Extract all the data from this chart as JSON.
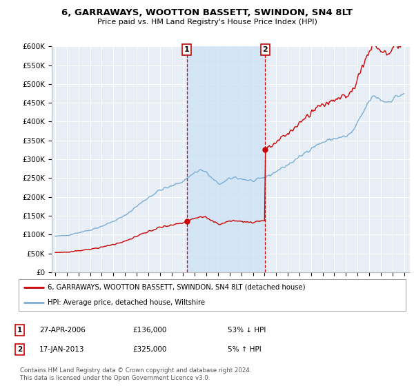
{
  "title": "6, GARRAWAYS, WOOTTON BASSETT, SWINDON, SN4 8LT",
  "subtitle": "Price paid vs. HM Land Registry's House Price Index (HPI)",
  "legend_line1": "6, GARRAWAYS, WOOTTON BASSETT, SWINDON, SN4 8LT (detached house)",
  "legend_line2": "HPI: Average price, detached house, Wiltshire",
  "annotation1_label": "1",
  "annotation1_date": "27-APR-2006",
  "annotation1_price": "£136,000",
  "annotation1_note": "53% ↓ HPI",
  "annotation2_label": "2",
  "annotation2_date": "17-JAN-2013",
  "annotation2_price": "£325,000",
  "annotation2_note": "5% ↑ HPI",
  "footer": "Contains HM Land Registry data © Crown copyright and database right 2024.\nThis data is licensed under the Open Government Licence v3.0.",
  "hpi_color": "#7aadd4",
  "price_color": "#cc0000",
  "marker_color": "#cc0000",
  "background_color": "#ffffff",
  "plot_bg_color": "#e8eef5",
  "shade_color": "#d0e4f5",
  "grid_color": "#ffffff",
  "ylim": [
    0,
    600000
  ],
  "yticks": [
    0,
    50000,
    100000,
    150000,
    200000,
    250000,
    300000,
    350000,
    400000,
    450000,
    500000,
    550000,
    600000
  ],
  "ytick_labels": [
    "£0",
    "£50K",
    "£100K",
    "£150K",
    "£200K",
    "£250K",
    "£300K",
    "£350K",
    "£400K",
    "£450K",
    "£500K",
    "£550K",
    "£600K"
  ],
  "sale1_x": 2006.32,
  "sale1_y": 136000,
  "sale2_x": 2013.05,
  "sale2_y": 325000,
  "xmin": 1995.0,
  "xmax": 2025.5
}
